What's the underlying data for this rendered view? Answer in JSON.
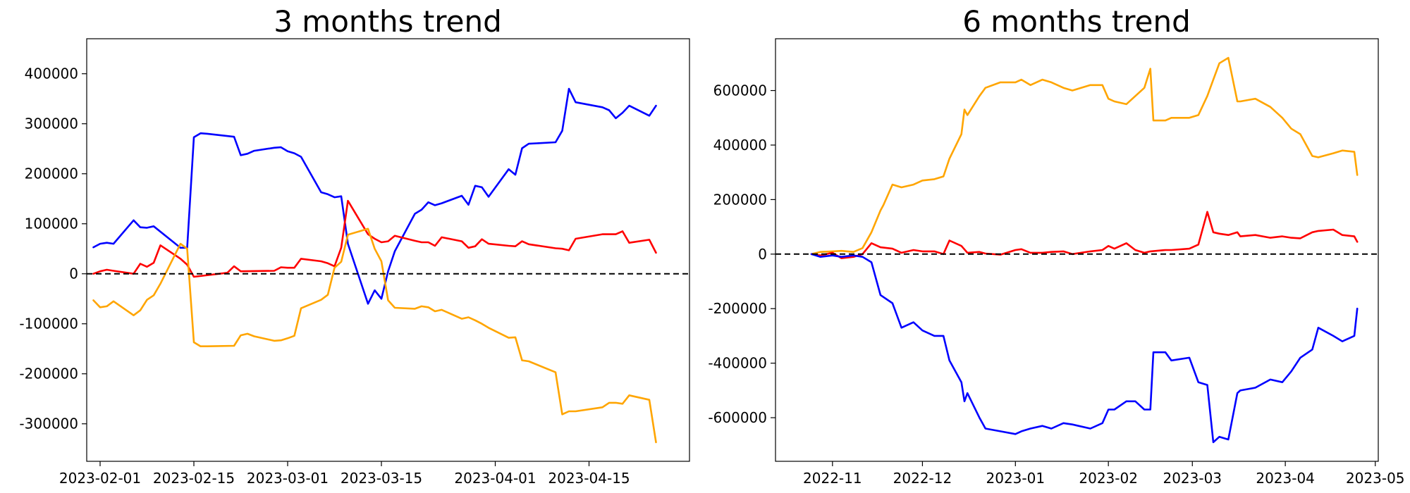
{
  "chart_data": [
    {
      "type": "line",
      "title": "3 months trend",
      "xlabel": "",
      "ylabel": "",
      "x_axis": "date",
      "xlim": [
        "2023-01-30",
        "2023-04-30"
      ],
      "ylim": [
        -375000,
        470000
      ],
      "xticks": [
        "2023-02-01",
        "2023-02-15",
        "2023-03-01",
        "2023-03-15",
        "2023-04-01",
        "2023-04-15"
      ],
      "yticks": [
        -300000,
        -200000,
        -100000,
        0,
        100000,
        200000,
        300000,
        400000
      ],
      "reference_line": {
        "y": 0,
        "style": "dashed",
        "color": "#000000"
      },
      "grid": false,
      "series": [
        {
          "color": "#0000ff",
          "x": [
            "2023-01-31",
            "2023-02-01",
            "2023-02-02",
            "2023-02-03",
            "2023-02-06",
            "2023-02-07",
            "2023-02-08",
            "2023-02-09",
            "2023-02-13",
            "2023-02-14",
            "2023-02-15",
            "2023-02-16",
            "2023-02-17",
            "2023-02-21",
            "2023-02-22",
            "2023-02-23",
            "2023-02-24",
            "2023-02-27",
            "2023-02-28",
            "2023-03-01",
            "2023-03-02",
            "2023-03-03",
            "2023-03-06",
            "2023-03-07",
            "2023-03-08",
            "2023-03-09",
            "2023-03-10",
            "2023-03-13",
            "2023-03-14",
            "2023-03-15",
            "2023-03-16",
            "2023-03-17",
            "2023-03-20",
            "2023-03-21",
            "2023-03-22",
            "2023-03-23",
            "2023-03-24",
            "2023-03-27",
            "2023-03-28",
            "2023-03-29",
            "2023-03-30",
            "2023-03-31",
            "2023-04-03",
            "2023-04-04",
            "2023-04-05",
            "2023-04-06",
            "2023-04-10",
            "2023-04-11",
            "2023-04-12",
            "2023-04-13",
            "2023-04-17",
            "2023-04-18",
            "2023-04-19",
            "2023-04-20",
            "2023-04-21",
            "2023-04-24",
            "2023-04-25"
          ],
          "values": [
            53000,
            60000,
            62000,
            60000,
            107000,
            93000,
            92000,
            95000,
            52000,
            52000,
            273000,
            281000,
            280000,
            274000,
            237000,
            240000,
            246000,
            252000,
            253000,
            245000,
            241000,
            234000,
            163000,
            159000,
            153000,
            155000,
            60000,
            -60000,
            -33000,
            -50000,
            5000,
            45000,
            120000,
            128000,
            143000,
            137000,
            141000,
            156000,
            138000,
            176000,
            173000,
            154000,
            209000,
            198000,
            251000,
            260000,
            263000,
            286000,
            370000,
            343000,
            333000,
            327000,
            311000,
            322000,
            336000,
            316000,
            336000
          ]
        },
        {
          "color": "#ff0000",
          "x": [
            "2023-01-31",
            "2023-02-01",
            "2023-02-02",
            "2023-02-03",
            "2023-02-06",
            "2023-02-07",
            "2023-02-08",
            "2023-02-09",
            "2023-02-10",
            "2023-02-13",
            "2023-02-14",
            "2023-02-15",
            "2023-02-20",
            "2023-02-21",
            "2023-02-22",
            "2023-02-27",
            "2023-02-28",
            "2023-03-01",
            "2023-03-02",
            "2023-03-03",
            "2023-03-06",
            "2023-03-07",
            "2023-03-08",
            "2023-03-09",
            "2023-03-10",
            "2023-03-13",
            "2023-03-14",
            "2023-03-15",
            "2023-03-16",
            "2023-03-17",
            "2023-03-20",
            "2023-03-21",
            "2023-03-22",
            "2023-03-23",
            "2023-03-24",
            "2023-03-27",
            "2023-03-28",
            "2023-03-29",
            "2023-03-30",
            "2023-03-31",
            "2023-04-03",
            "2023-04-04",
            "2023-04-05",
            "2023-04-06",
            "2023-04-10",
            "2023-04-11",
            "2023-04-12",
            "2023-04-13",
            "2023-04-17",
            "2023-04-18",
            "2023-04-19",
            "2023-04-20",
            "2023-04-21",
            "2023-04-24",
            "2023-04-25"
          ],
          "values": [
            0,
            5000,
            8000,
            6000,
            0,
            20000,
            14000,
            22000,
            57000,
            30000,
            18000,
            -6000,
            2000,
            15000,
            5000,
            6000,
            13000,
            12000,
            12000,
            30000,
            25000,
            21000,
            15000,
            52000,
            146000,
            79000,
            70000,
            63000,
            65000,
            76000,
            66000,
            63000,
            63000,
            56000,
            73000,
            65000,
            52000,
            55000,
            69000,
            60000,
            56000,
            55000,
            65000,
            59000,
            51000,
            50000,
            47000,
            70000,
            79000,
            79000,
            79000,
            85000,
            62000,
            68000,
            42000
          ]
        },
        {
          "color": "#ffa500",
          "x": [
            "2023-01-31",
            "2023-02-01",
            "2023-02-02",
            "2023-02-03",
            "2023-02-06",
            "2023-02-07",
            "2023-02-08",
            "2023-02-09",
            "2023-02-10",
            "2023-02-13",
            "2023-02-14",
            "2023-02-15",
            "2023-02-16",
            "2023-02-17",
            "2023-02-21",
            "2023-02-22",
            "2023-02-23",
            "2023-02-24",
            "2023-02-27",
            "2023-02-28",
            "2023-03-01",
            "2023-03-02",
            "2023-03-03",
            "2023-03-06",
            "2023-03-07",
            "2023-03-08",
            "2023-03-09",
            "2023-03-10",
            "2023-03-13",
            "2023-03-14",
            "2023-03-15",
            "2023-03-16",
            "2023-03-17",
            "2023-03-20",
            "2023-03-21",
            "2023-03-22",
            "2023-03-23",
            "2023-03-24",
            "2023-03-27",
            "2023-03-28",
            "2023-03-29",
            "2023-03-30",
            "2023-03-31",
            "2023-04-03",
            "2023-04-04",
            "2023-04-05",
            "2023-04-06",
            "2023-04-10",
            "2023-04-11",
            "2023-04-12",
            "2023-04-13",
            "2023-04-17",
            "2023-04-18",
            "2023-04-19",
            "2023-04-20",
            "2023-04-21",
            "2023-04-24",
            "2023-04-25"
          ],
          "values": [
            -53000,
            -67000,
            -65000,
            -55000,
            -83000,
            -73000,
            -52000,
            -43000,
            -20000,
            60000,
            50000,
            -137000,
            -145000,
            -145000,
            -144000,
            -123000,
            -120000,
            -125000,
            -134000,
            -133000,
            -129000,
            -124000,
            -69000,
            -52000,
            -42000,
            12000,
            24000,
            78000,
            90000,
            50000,
            25000,
            -53000,
            -68000,
            -70000,
            -65000,
            -67000,
            -75000,
            -72000,
            -90000,
            -87000,
            -93000,
            -100000,
            -108000,
            -128000,
            -127000,
            -173000,
            -175000,
            -197000,
            -281000,
            -275000,
            -275000,
            -267000,
            -258000,
            -258000,
            -260000,
            -243000,
            -252000,
            -337000
          ]
        }
      ]
    },
    {
      "type": "line",
      "title": "6 months trend",
      "xlabel": "",
      "ylabel": "",
      "x_axis": "date",
      "xlim": [
        "2022-10-13",
        "2023-05-02"
      ],
      "ylim": [
        -760000,
        790000
      ],
      "xticks": [
        "2022-11",
        "2022-12",
        "2023-01",
        "2023-02",
        "2023-03",
        "2023-04",
        "2023-05"
      ],
      "yticks": [
        -600000,
        -400000,
        -200000,
        0,
        200000,
        400000,
        600000
      ],
      "reference_line": {
        "y": 0,
        "style": "dashed",
        "color": "#000000"
      },
      "grid": false,
      "series": [
        {
          "color": "#ffa500",
          "x": [
            "2022-10-25",
            "2022-10-28",
            "2022-11-01",
            "2022-11-04",
            "2022-11-08",
            "2022-11-11",
            "2022-11-14",
            "2022-11-17",
            "2022-11-18",
            "2022-11-21",
            "2022-11-24",
            "2022-11-28",
            "2022-12-01",
            "2022-12-05",
            "2022-12-08",
            "2022-12-10",
            "2022-12-14",
            "2022-12-15",
            "2022-12-16",
            "2022-12-20",
            "2022-12-22",
            "2022-12-27",
            "2023-01-01",
            "2023-01-03",
            "2023-01-06",
            "2023-01-10",
            "2023-01-13",
            "2023-01-17",
            "2023-01-20",
            "2023-01-26",
            "2023-01-30",
            "2023-02-01",
            "2023-02-03",
            "2023-02-07",
            "2023-02-13",
            "2023-02-15",
            "2023-02-16",
            "2023-02-20",
            "2023-02-22",
            "2023-02-28",
            "2023-03-03",
            "2023-03-06",
            "2023-03-08",
            "2023-03-10",
            "2023-03-13",
            "2023-03-16",
            "2023-03-17",
            "2023-03-22",
            "2023-03-27",
            "2023-03-31",
            "2023-04-03",
            "2023-04-06",
            "2023-04-10",
            "2023-04-12",
            "2023-04-17",
            "2023-04-20",
            "2023-04-24",
            "2023-04-25"
          ],
          "values": [
            0,
            8000,
            10000,
            12000,
            8000,
            22000,
            80000,
            160000,
            180000,
            255000,
            245000,
            255000,
            270000,
            275000,
            285000,
            350000,
            440000,
            530000,
            510000,
            580000,
            610000,
            630000,
            630000,
            640000,
            620000,
            640000,
            630000,
            610000,
            600000,
            620000,
            620000,
            570000,
            560000,
            550000,
            610000,
            680000,
            490000,
            490000,
            500000,
            500000,
            510000,
            580000,
            640000,
            700000,
            720000,
            560000,
            560000,
            570000,
            540000,
            500000,
            460000,
            440000,
            360000,
            355000,
            370000,
            380000,
            375000,
            290000
          ]
        },
        {
          "color": "#ff0000",
          "x": [
            "2022-10-25",
            "2022-10-28",
            "2022-11-01",
            "2022-11-04",
            "2022-11-08",
            "2022-11-11",
            "2022-11-14",
            "2022-11-17",
            "2022-11-21",
            "2022-11-24",
            "2022-11-28",
            "2022-12-01",
            "2022-12-05",
            "2022-12-08",
            "2022-12-10",
            "2022-12-14",
            "2022-12-16",
            "2022-12-20",
            "2022-12-22",
            "2022-12-27",
            "2023-01-01",
            "2023-01-03",
            "2023-01-06",
            "2023-01-10",
            "2023-01-13",
            "2023-01-17",
            "2023-01-20",
            "2023-01-26",
            "2023-01-30",
            "2023-02-01",
            "2023-02-03",
            "2023-02-07",
            "2023-02-10",
            "2023-02-13",
            "2023-02-15",
            "2023-02-20",
            "2023-02-22",
            "2023-02-28",
            "2023-03-03",
            "2023-03-06",
            "2023-03-08",
            "2023-03-10",
            "2023-03-13",
            "2023-03-16",
            "2023-03-17",
            "2023-03-22",
            "2023-03-27",
            "2023-03-31",
            "2023-04-03",
            "2023-04-06",
            "2023-04-10",
            "2023-04-12",
            "2023-04-17",
            "2023-04-20",
            "2023-04-24",
            "2023-04-25"
          ],
          "values": [
            0,
            -5000,
            5000,
            -15000,
            -10000,
            0,
            40000,
            25000,
            20000,
            5000,
            15000,
            10000,
            10000,
            0,
            50000,
            30000,
            5000,
            8000,
            2000,
            -2000,
            15000,
            18000,
            5000,
            5000,
            8000,
            10000,
            0,
            10000,
            15000,
            30000,
            20000,
            40000,
            15000,
            5000,
            10000,
            15000,
            15000,
            20000,
            35000,
            155000,
            80000,
            75000,
            70000,
            80000,
            65000,
            70000,
            60000,
            65000,
            60000,
            58000,
            80000,
            85000,
            90000,
            70000,
            65000,
            45000
          ]
        },
        {
          "color": "#0000ff",
          "x": [
            "2022-10-25",
            "2022-10-28",
            "2022-11-01",
            "2022-11-04",
            "2022-11-08",
            "2022-11-11",
            "2022-11-14",
            "2022-11-17",
            "2022-11-21",
            "2022-11-24",
            "2022-11-28",
            "2022-12-01",
            "2022-12-05",
            "2022-12-08",
            "2022-12-10",
            "2022-12-14",
            "2022-12-15",
            "2022-12-16",
            "2022-12-20",
            "2022-12-22",
            "2022-12-27",
            "2023-01-01",
            "2023-01-03",
            "2023-01-06",
            "2023-01-10",
            "2023-01-13",
            "2023-01-17",
            "2023-01-20",
            "2023-01-26",
            "2023-01-30",
            "2023-02-01",
            "2023-02-03",
            "2023-02-07",
            "2023-02-10",
            "2023-02-13",
            "2023-02-15",
            "2023-02-16",
            "2023-02-20",
            "2023-02-22",
            "2023-02-28",
            "2023-03-03",
            "2023-03-06",
            "2023-03-08",
            "2023-03-10",
            "2023-03-13",
            "2023-03-16",
            "2023-03-17",
            "2023-03-22",
            "2023-03-27",
            "2023-03-31",
            "2023-04-03",
            "2023-04-06",
            "2023-04-10",
            "2023-04-12",
            "2023-04-17",
            "2023-04-20",
            "2023-04-24",
            "2023-04-25"
          ],
          "values": [
            0,
            -10000,
            -5000,
            -10000,
            -5000,
            -10000,
            -30000,
            -150000,
            -180000,
            -270000,
            -250000,
            -280000,
            -300000,
            -300000,
            -390000,
            -470000,
            -540000,
            -510000,
            -600000,
            -640000,
            -650000,
            -660000,
            -650000,
            -640000,
            -630000,
            -640000,
            -620000,
            -625000,
            -640000,
            -620000,
            -570000,
            -570000,
            -540000,
            -540000,
            -570000,
            -570000,
            -360000,
            -360000,
            -390000,
            -380000,
            -470000,
            -480000,
            -690000,
            -670000,
            -680000,
            -510000,
            -500000,
            -490000,
            -460000,
            -470000,
            -430000,
            -380000,
            -350000,
            -270000,
            -300000,
            -320000,
            -300000,
            -200000
          ]
        }
      ]
    }
  ]
}
